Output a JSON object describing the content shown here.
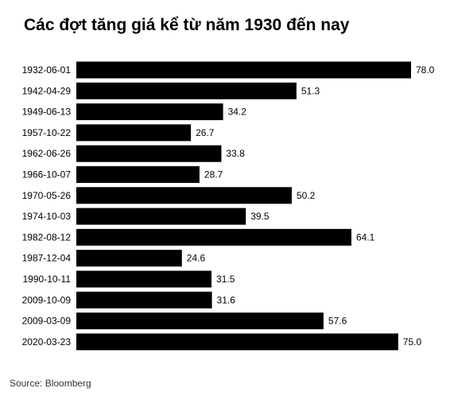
{
  "chart_data": {
    "type": "bar",
    "orientation": "horizontal",
    "title": "Các đợt tăng giá kể từ năm 1930 đến nay",
    "categories": [
      "1932-06-01",
      "1942-04-29",
      "1949-06-13",
      "1957-10-22",
      "1962-06-26",
      "1966-10-07",
      "1970-05-26",
      "1974-10-03",
      "1982-08-12",
      "1987-12-04",
      "1990-10-11",
      "2009-10-09",
      "2009-03-09",
      "2020-03-23"
    ],
    "values": [
      78.0,
      51.3,
      34.2,
      26.7,
      33.8,
      28.7,
      50.2,
      39.5,
      64.1,
      24.6,
      31.5,
      31.6,
      57.6,
      75.0
    ],
    "value_labels": [
      "78.0",
      "51.3",
      "34.2",
      "26.7",
      "33.8",
      "28.7",
      "50.2",
      "39.5",
      "64.1",
      "24.6",
      "31.5",
      "31.6",
      "57.6",
      "75.0"
    ],
    "xlim": [
      0,
      78
    ],
    "grid": false,
    "bar_color": "#000000"
  },
  "source": "Source: Bloomberg"
}
